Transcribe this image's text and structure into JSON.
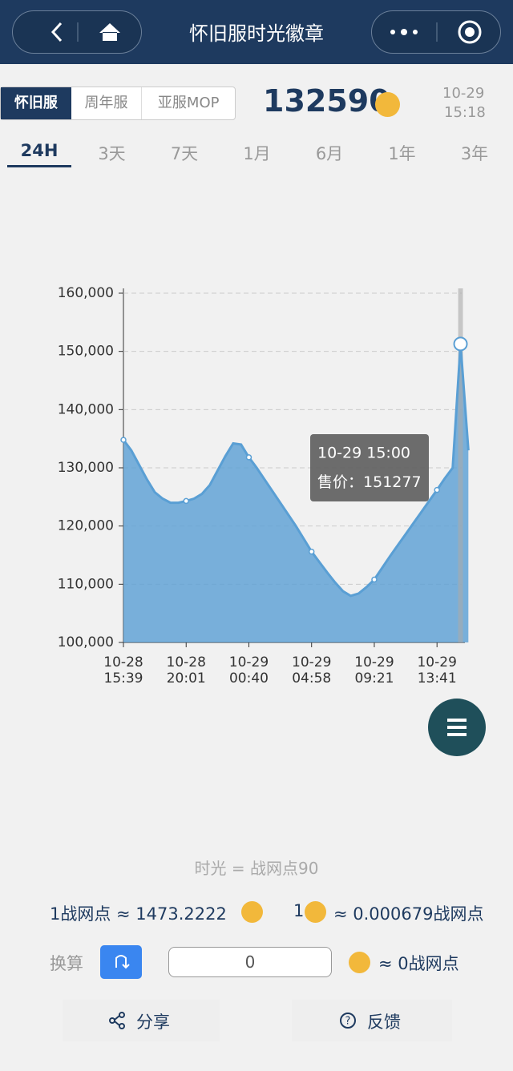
{
  "header": {
    "title": "怀旧服时光徽章"
  },
  "server_tabs": [
    "怀旧服",
    "周年服",
    "亚服MOP"
  ],
  "price": "132590",
  "time": {
    "date": "10-29",
    "clock": "15:18"
  },
  "period_tabs": [
    "24H",
    "3天",
    "7天",
    "1月",
    "6月",
    "1年",
    "3年"
  ],
  "chart_data": {
    "type": "area",
    "color": "#5a9fd4",
    "categories": [
      "10-28 15:39",
      null,
      null,
      null,
      null,
      null,
      null,
      null,
      "10-28 20:01",
      null,
      null,
      null,
      null,
      null,
      null,
      null,
      "10-29 00:40",
      null,
      null,
      null,
      null,
      null,
      null,
      null,
      "10-29 04:58",
      null,
      null,
      null,
      null,
      null,
      null,
      null,
      "10-29 09:21",
      null,
      null,
      null,
      null,
      null,
      null,
      null,
      "10-29 13:41",
      null,
      null,
      null,
      null
    ],
    "values": [
      134800,
      133000,
      130500,
      128000,
      125800,
      124700,
      124000,
      124000,
      124300,
      124700,
      125500,
      127000,
      129500,
      132000,
      134200,
      134000,
      131800,
      130000,
      128000,
      126000,
      124000,
      122000,
      120000,
      117800,
      115600,
      113800,
      112000,
      110300,
      108800,
      108000,
      108400,
      109500,
      110800,
      112800,
      114800,
      116700,
      118600,
      120500,
      122400,
      124300,
      126200,
      128200,
      130000,
      151277,
      133000
    ],
    "ylim": [
      100000,
      160000
    ],
    "yticks": [
      {
        "value": 100000,
        "label": "100,000"
      },
      {
        "value": 110000,
        "label": "110,000"
      },
      {
        "value": 120000,
        "label": "120,000"
      },
      {
        "value": 130000,
        "label": "130,000"
      },
      {
        "value": 140000,
        "label": "140,000"
      },
      {
        "value": 150000,
        "label": "150,000"
      },
      {
        "value": 160000,
        "label": "160,000"
      }
    ],
    "grid": true,
    "tooltip": {
      "title": "10-29 15:00",
      "label": "售价："
    }
  },
  "conversion": {
    "rate": "时光 = 战网点90",
    "left": "1战网点 ≈ 1473.2222",
    "right_prefix": "1",
    "right": "≈ 0.000679战网点",
    "calc_label": "换算",
    "input": "0",
    "result": "≈ 0战网点"
  },
  "actions": [
    "分享",
    "反馈"
  ]
}
